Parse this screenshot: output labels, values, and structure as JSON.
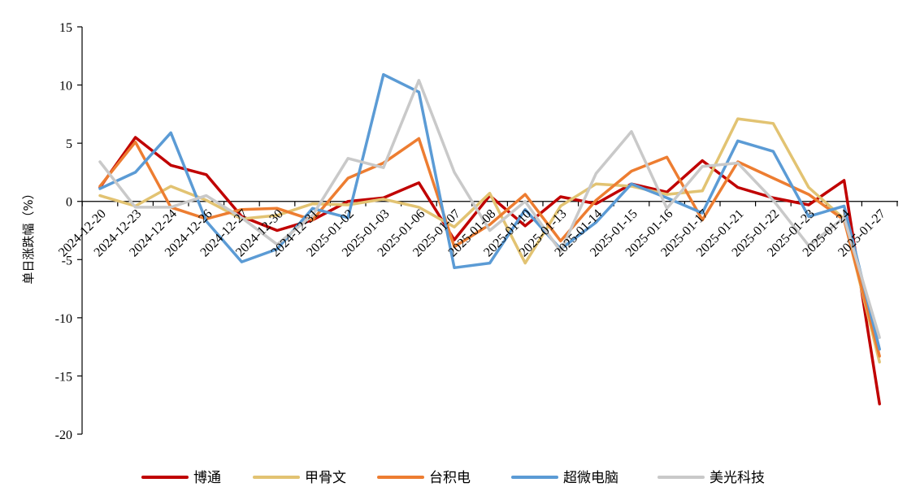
{
  "chart_data": {
    "type": "line",
    "ylabel": "单日涨跌幅（%）",
    "ylim": [
      -20,
      15
    ],
    "yticks": [
      15,
      10,
      5,
      0,
      -5,
      -10,
      -15,
      -20
    ],
    "grid": false,
    "legend_position": "bottom",
    "categories": [
      "2024-12-20",
      "2024-12-23",
      "2024-12-24",
      "2024-12-26",
      "2024-12-27",
      "2024-12-30",
      "2024-12-31",
      "2025-01-02",
      "2025-01-03",
      "2025-01-06",
      "2025-01-07",
      "2025-01-08",
      "2025-01-10",
      "2025-01-13",
      "2025-01-14",
      "2025-01-15",
      "2025-01-16",
      "2025-01-17",
      "2025-01-21",
      "2025-01-22",
      "2025-01-23",
      "2025-01-24",
      "2025-01-27"
    ],
    "series": [
      {
        "name": "博通",
        "color": "#c00000",
        "values": [
          1.2,
          5.5,
          3.1,
          2.3,
          -1.3,
          -2.5,
          -1.6,
          0.0,
          0.3,
          1.6,
          -3.3,
          0.5,
          -2.1,
          0.4,
          -0.2,
          1.5,
          0.8,
          3.5,
          1.2,
          0.3,
          -0.3,
          1.8,
          -17.4
        ]
      },
      {
        "name": "甲骨文",
        "color": "#e2c372",
        "values": [
          0.5,
          -0.4,
          1.3,
          0.1,
          -1.5,
          -1.2,
          -0.2,
          -0.3,
          0.2,
          -0.5,
          -2.2,
          0.7,
          -5.3,
          -0.4,
          1.5,
          1.3,
          0.6,
          0.9,
          7.1,
          6.7,
          1.2,
          -1.5,
          -13.8
        ]
      },
      {
        "name": "台积电",
        "color": "#ed7d31",
        "values": [
          1.3,
          5.1,
          -0.5,
          -1.5,
          -0.7,
          -0.6,
          -1.6,
          2.0,
          3.3,
          5.4,
          -3.9,
          -2.0,
          0.6,
          -3.4,
          0.1,
          2.6,
          3.8,
          -1.6,
          3.4,
          2.0,
          0.6,
          -1.6,
          -13.3
        ]
      },
      {
        "name": "超微电脑",
        "color": "#5b9bd5",
        "values": [
          1.1,
          2.5,
          5.9,
          -1.7,
          -5.2,
          -4.1,
          -0.6,
          -1.4,
          10.9,
          9.4,
          -5.7,
          -5.3,
          -0.7,
          -4.1,
          -1.8,
          1.5,
          0.3,
          -1.0,
          5.2,
          4.3,
          -1.3,
          -0.4,
          -12.7
        ]
      },
      {
        "name": "美光科技",
        "color": "#c9c9c9",
        "values": [
          3.4,
          -0.5,
          -0.5,
          0.5,
          -1.4,
          -3.7,
          -1.2,
          3.7,
          2.9,
          10.4,
          2.5,
          -2.5,
          0.0,
          -4.3,
          2.4,
          6.0,
          -0.6,
          3.0,
          3.3,
          0.1,
          -3.8,
          -1.4,
          -11.7
        ]
      }
    ]
  }
}
